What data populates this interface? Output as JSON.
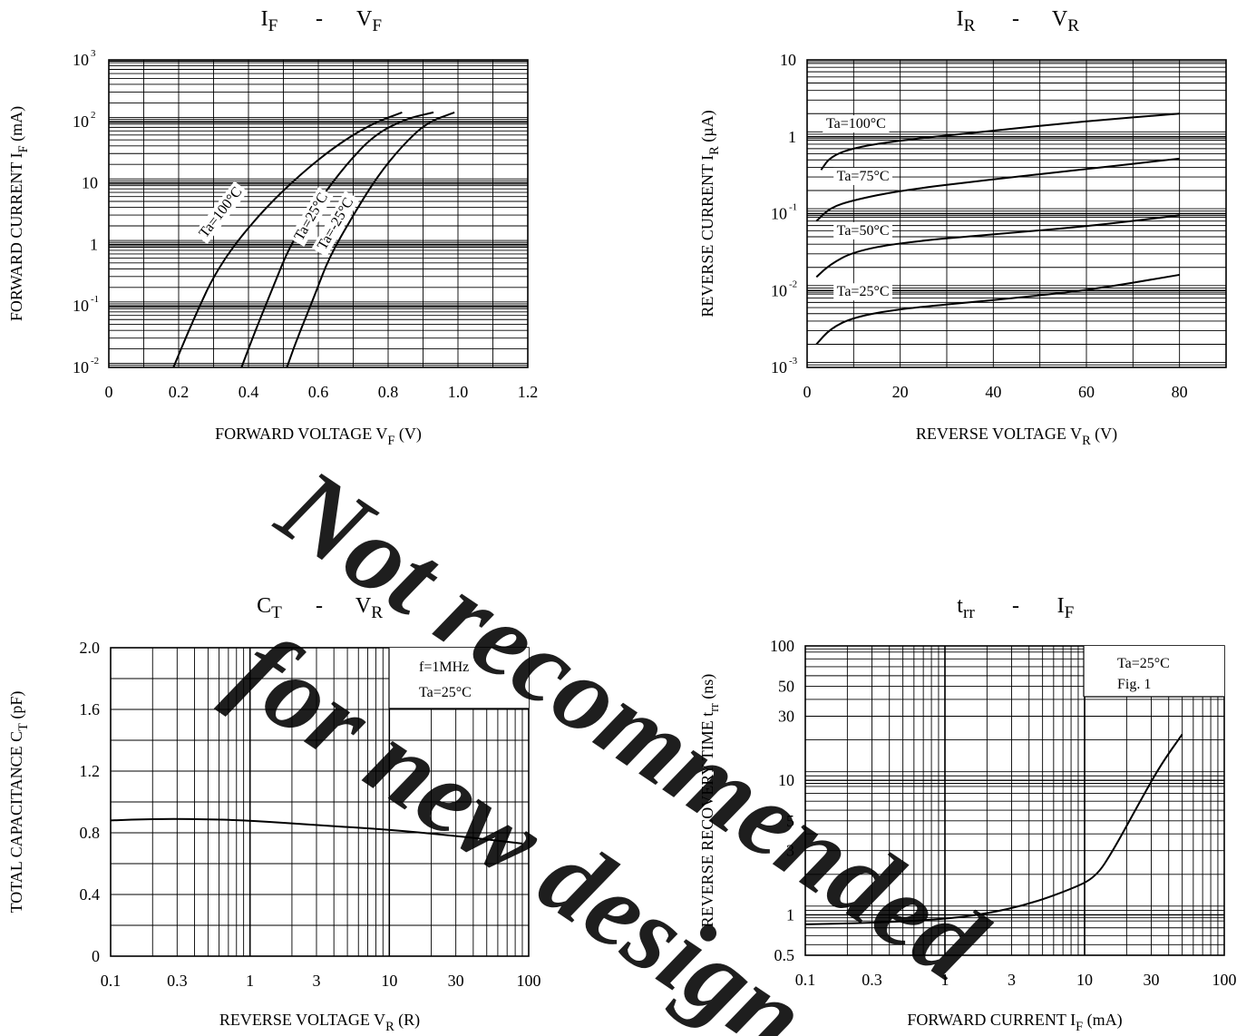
{
  "watermark": {
    "line1": "Not recommended",
    "line2": "for new design",
    "color": "#8a8a8a"
  },
  "chart_data": [
    {
      "id": "if-vf",
      "type": "line",
      "title": "I_F - V_F",
      "xlabel": "FORWARD VOLTAGE V_F (V)",
      "ylabel": "FORWARD CURRENT I_F (mA)",
      "xscale": "linear",
      "yscale": "log",
      "xlim": [
        0,
        1.2
      ],
      "ylim": [
        0.01,
        1000
      ],
      "xticks": [
        {
          "v": 0,
          "t": "0"
        },
        {
          "v": 0.2,
          "t": "0.2"
        },
        {
          "v": 0.4,
          "t": "0.4"
        },
        {
          "v": 0.6,
          "t": "0.6"
        },
        {
          "v": 0.8,
          "t": "0.8"
        },
        {
          "v": 1.0,
          "t": "1.0"
        },
        {
          "v": 1.2,
          "t": "1.2"
        }
      ],
      "yticks": [
        {
          "v": 0.01,
          "t": "10",
          "sup": "-2"
        },
        {
          "v": 0.1,
          "t": "10",
          "sup": "-1"
        },
        {
          "v": 1,
          "t": "1"
        },
        {
          "v": 10,
          "t": "10"
        },
        {
          "v": 100,
          "t": "10",
          "sup": "2"
        },
        {
          "v": 1000,
          "t": "10",
          "sup": "3"
        }
      ],
      "grid": "dense",
      "series": [
        {
          "name": "Ta=100°C",
          "points": [
            [
              0.185,
              0.01
            ],
            [
              0.22,
              0.03
            ],
            [
              0.26,
              0.1
            ],
            [
              0.3,
              0.3
            ],
            [
              0.36,
              1.0
            ],
            [
              0.45,
              4
            ],
            [
              0.55,
              14
            ],
            [
              0.65,
              40
            ],
            [
              0.75,
              90
            ],
            [
              0.84,
              140
            ]
          ]
        },
        {
          "name": "Ta=25°C",
          "points": [
            [
              0.38,
              0.01
            ],
            [
              0.42,
              0.04
            ],
            [
              0.47,
              0.2
            ],
            [
              0.52,
              1.0
            ],
            [
              0.6,
              5
            ],
            [
              0.68,
              20
            ],
            [
              0.76,
              60
            ],
            [
              0.85,
              110
            ],
            [
              0.93,
              140
            ]
          ]
        },
        {
          "name": "Ta=-25°C",
          "points": [
            [
              0.51,
              0.01
            ],
            [
              0.54,
              0.03
            ],
            [
              0.59,
              0.15
            ],
            [
              0.63,
              0.6
            ],
            [
              0.7,
              3
            ],
            [
              0.77,
              13
            ],
            [
              0.84,
              40
            ],
            [
              0.91,
              95
            ],
            [
              0.99,
              140
            ]
          ]
        }
      ],
      "labels": [
        {
          "text": "Ta=100°C",
          "x": 0.33,
          "y": 3.0,
          "angle": -52
        },
        {
          "text": "Ta=25°C",
          "x": 0.59,
          "y": 2.6,
          "angle": -60
        },
        {
          "text": "Ta=-25°C",
          "x": 0.66,
          "y": 2.0,
          "angle": -60
        }
      ]
    },
    {
      "id": "ir-vr",
      "type": "line",
      "title": "I_R - V_R",
      "xlabel": "REVERSE VOLTAGE V_R (V)",
      "ylabel": "REVERSE CURRENT I_R (µA)",
      "xscale": "linear",
      "yscale": "log",
      "xlim": [
        0,
        90
      ],
      "ylim": [
        0.001,
        10
      ],
      "xticks": [
        {
          "v": 0,
          "t": "0"
        },
        {
          "v": 20,
          "t": "20"
        },
        {
          "v": 40,
          "t": "40"
        },
        {
          "v": 60,
          "t": "60"
        },
        {
          "v": 80,
          "t": "80"
        }
      ],
      "yticks": [
        {
          "v": 0.001,
          "t": "10",
          "sup": "-3"
        },
        {
          "v": 0.01,
          "t": "10",
          "sup": "-2"
        },
        {
          "v": 0.1,
          "t": "10",
          "sup": "-1"
        },
        {
          "v": 1,
          "t": "1"
        },
        {
          "v": 10,
          "t": "10"
        }
      ],
      "grid": "dense",
      "series": [
        {
          "name": "Ta=100°C",
          "points": [
            [
              3,
              0.37
            ],
            [
              5,
              0.55
            ],
            [
              10,
              0.72
            ],
            [
              20,
              0.9
            ],
            [
              40,
              1.2
            ],
            [
              60,
              1.6
            ],
            [
              80,
              2.0
            ]
          ]
        },
        {
          "name": "Ta=75°C",
          "points": [
            [
              2,
              0.08
            ],
            [
              5,
              0.12
            ],
            [
              10,
              0.15
            ],
            [
              20,
              0.2
            ],
            [
              40,
              0.28
            ],
            [
              60,
              0.38
            ],
            [
              80,
              0.52
            ]
          ]
        },
        {
          "name": "Ta=50°C",
          "points": [
            [
              2,
              0.015
            ],
            [
              5,
              0.022
            ],
            [
              10,
              0.032
            ],
            [
              20,
              0.042
            ],
            [
              40,
              0.054
            ],
            [
              60,
              0.068
            ],
            [
              80,
              0.095
            ]
          ]
        },
        {
          "name": "Ta=25°C",
          "points": [
            [
              2,
              0.002
            ],
            [
              5,
              0.0032
            ],
            [
              10,
              0.0045
            ],
            [
              20,
              0.0058
            ],
            [
              40,
              0.0075
            ],
            [
              60,
              0.01
            ],
            [
              80,
              0.016
            ]
          ]
        }
      ],
      "labels": [
        {
          "text": "Ta=100°C",
          "x": 10.5,
          "y": 1.3,
          "angle": 0
        },
        {
          "text": "Ta=75°C",
          "x": 12,
          "y": 0.27,
          "angle": 0
        },
        {
          "text": "Ta=50°C",
          "x": 12,
          "y": 0.053,
          "angle": 0
        },
        {
          "text": "Ta=25°C",
          "x": 12,
          "y": 0.0085,
          "angle": 0
        }
      ]
    },
    {
      "id": "ct-vr",
      "type": "line",
      "title": "C_T - V_R",
      "xlabel": "REVERSE VOLTAGE V_R (R)",
      "ylabel": "TOTAL CAPACITANCE C_T (pF)",
      "xscale": "log",
      "yscale": "linear",
      "xlim": [
        0.1,
        100
      ],
      "ylim": [
        0,
        2.0
      ],
      "xticks": [
        {
          "v": 0.1,
          "t": "0.1"
        },
        {
          "v": 0.3,
          "t": "0.3"
        },
        {
          "v": 1,
          "t": "1"
        },
        {
          "v": 3,
          "t": "3"
        },
        {
          "v": 10,
          "t": "10"
        },
        {
          "v": 30,
          "t": "30"
        },
        {
          "v": 100,
          "t": "100"
        }
      ],
      "yticks": [
        {
          "v": 0,
          "t": "0"
        },
        {
          "v": 0.4,
          "t": "0.4"
        },
        {
          "v": 0.8,
          "t": "0.8"
        },
        {
          "v": 1.2,
          "t": "1.2"
        },
        {
          "v": 1.6,
          "t": "1.6"
        },
        {
          "v": 2.0,
          "t": "2.0"
        }
      ],
      "grid": "major",
      "annotations": [
        "f=1MHz",
        "Ta=25°C"
      ],
      "series": [
        {
          "points": [
            [
              0.1,
              0.88
            ],
            [
              0.2,
              0.89
            ],
            [
              0.4,
              0.89
            ],
            [
              1,
              0.88
            ],
            [
              3,
              0.85
            ],
            [
              10,
              0.82
            ],
            [
              30,
              0.78
            ],
            [
              90,
              0.73
            ]
          ]
        }
      ]
    },
    {
      "id": "trr-if",
      "type": "line",
      "title": "t_rr - I_F",
      "xlabel": "FORWARD CURRENT I_F (mA)",
      "ylabel": "REVERSE RECOVERY TIME t_rr (ns)",
      "xscale": "log",
      "yscale": "log",
      "xlim": [
        0.1,
        100
      ],
      "ylim": [
        0.5,
        100
      ],
      "xticks": [
        {
          "v": 0.1,
          "t": "0.1"
        },
        {
          "v": 0.3,
          "t": "0.3"
        },
        {
          "v": 1,
          "t": "1"
        },
        {
          "v": 3,
          "t": "3"
        },
        {
          "v": 10,
          "t": "10"
        },
        {
          "v": 30,
          "t": "30"
        },
        {
          "v": 100,
          "t": "100"
        }
      ],
      "yticks": [
        {
          "v": 0.5,
          "t": "0.5"
        },
        {
          "v": 1,
          "t": "1"
        },
        {
          "v": 3,
          "t": "3"
        },
        {
          "v": 5,
          "t": "5"
        },
        {
          "v": 10,
          "t": "10"
        },
        {
          "v": 30,
          "t": "30"
        },
        {
          "v": 50,
          "t": "50"
        },
        {
          "v": 100,
          "t": "100"
        }
      ],
      "grid": "dense",
      "annotations": [
        "Ta=25°C",
        "Fig. 1"
      ],
      "series": [
        {
          "points": [
            [
              0.1,
              0.85
            ],
            [
              0.3,
              0.87
            ],
            [
              1,
              0.93
            ],
            [
              2,
              1.02
            ],
            [
              4,
              1.2
            ],
            [
              8,
              1.55
            ],
            [
              12,
              1.9
            ],
            [
              16,
              3.0
            ],
            [
              25,
              7
            ],
            [
              35,
              13
            ],
            [
              50,
              22
            ]
          ]
        }
      ]
    }
  ]
}
